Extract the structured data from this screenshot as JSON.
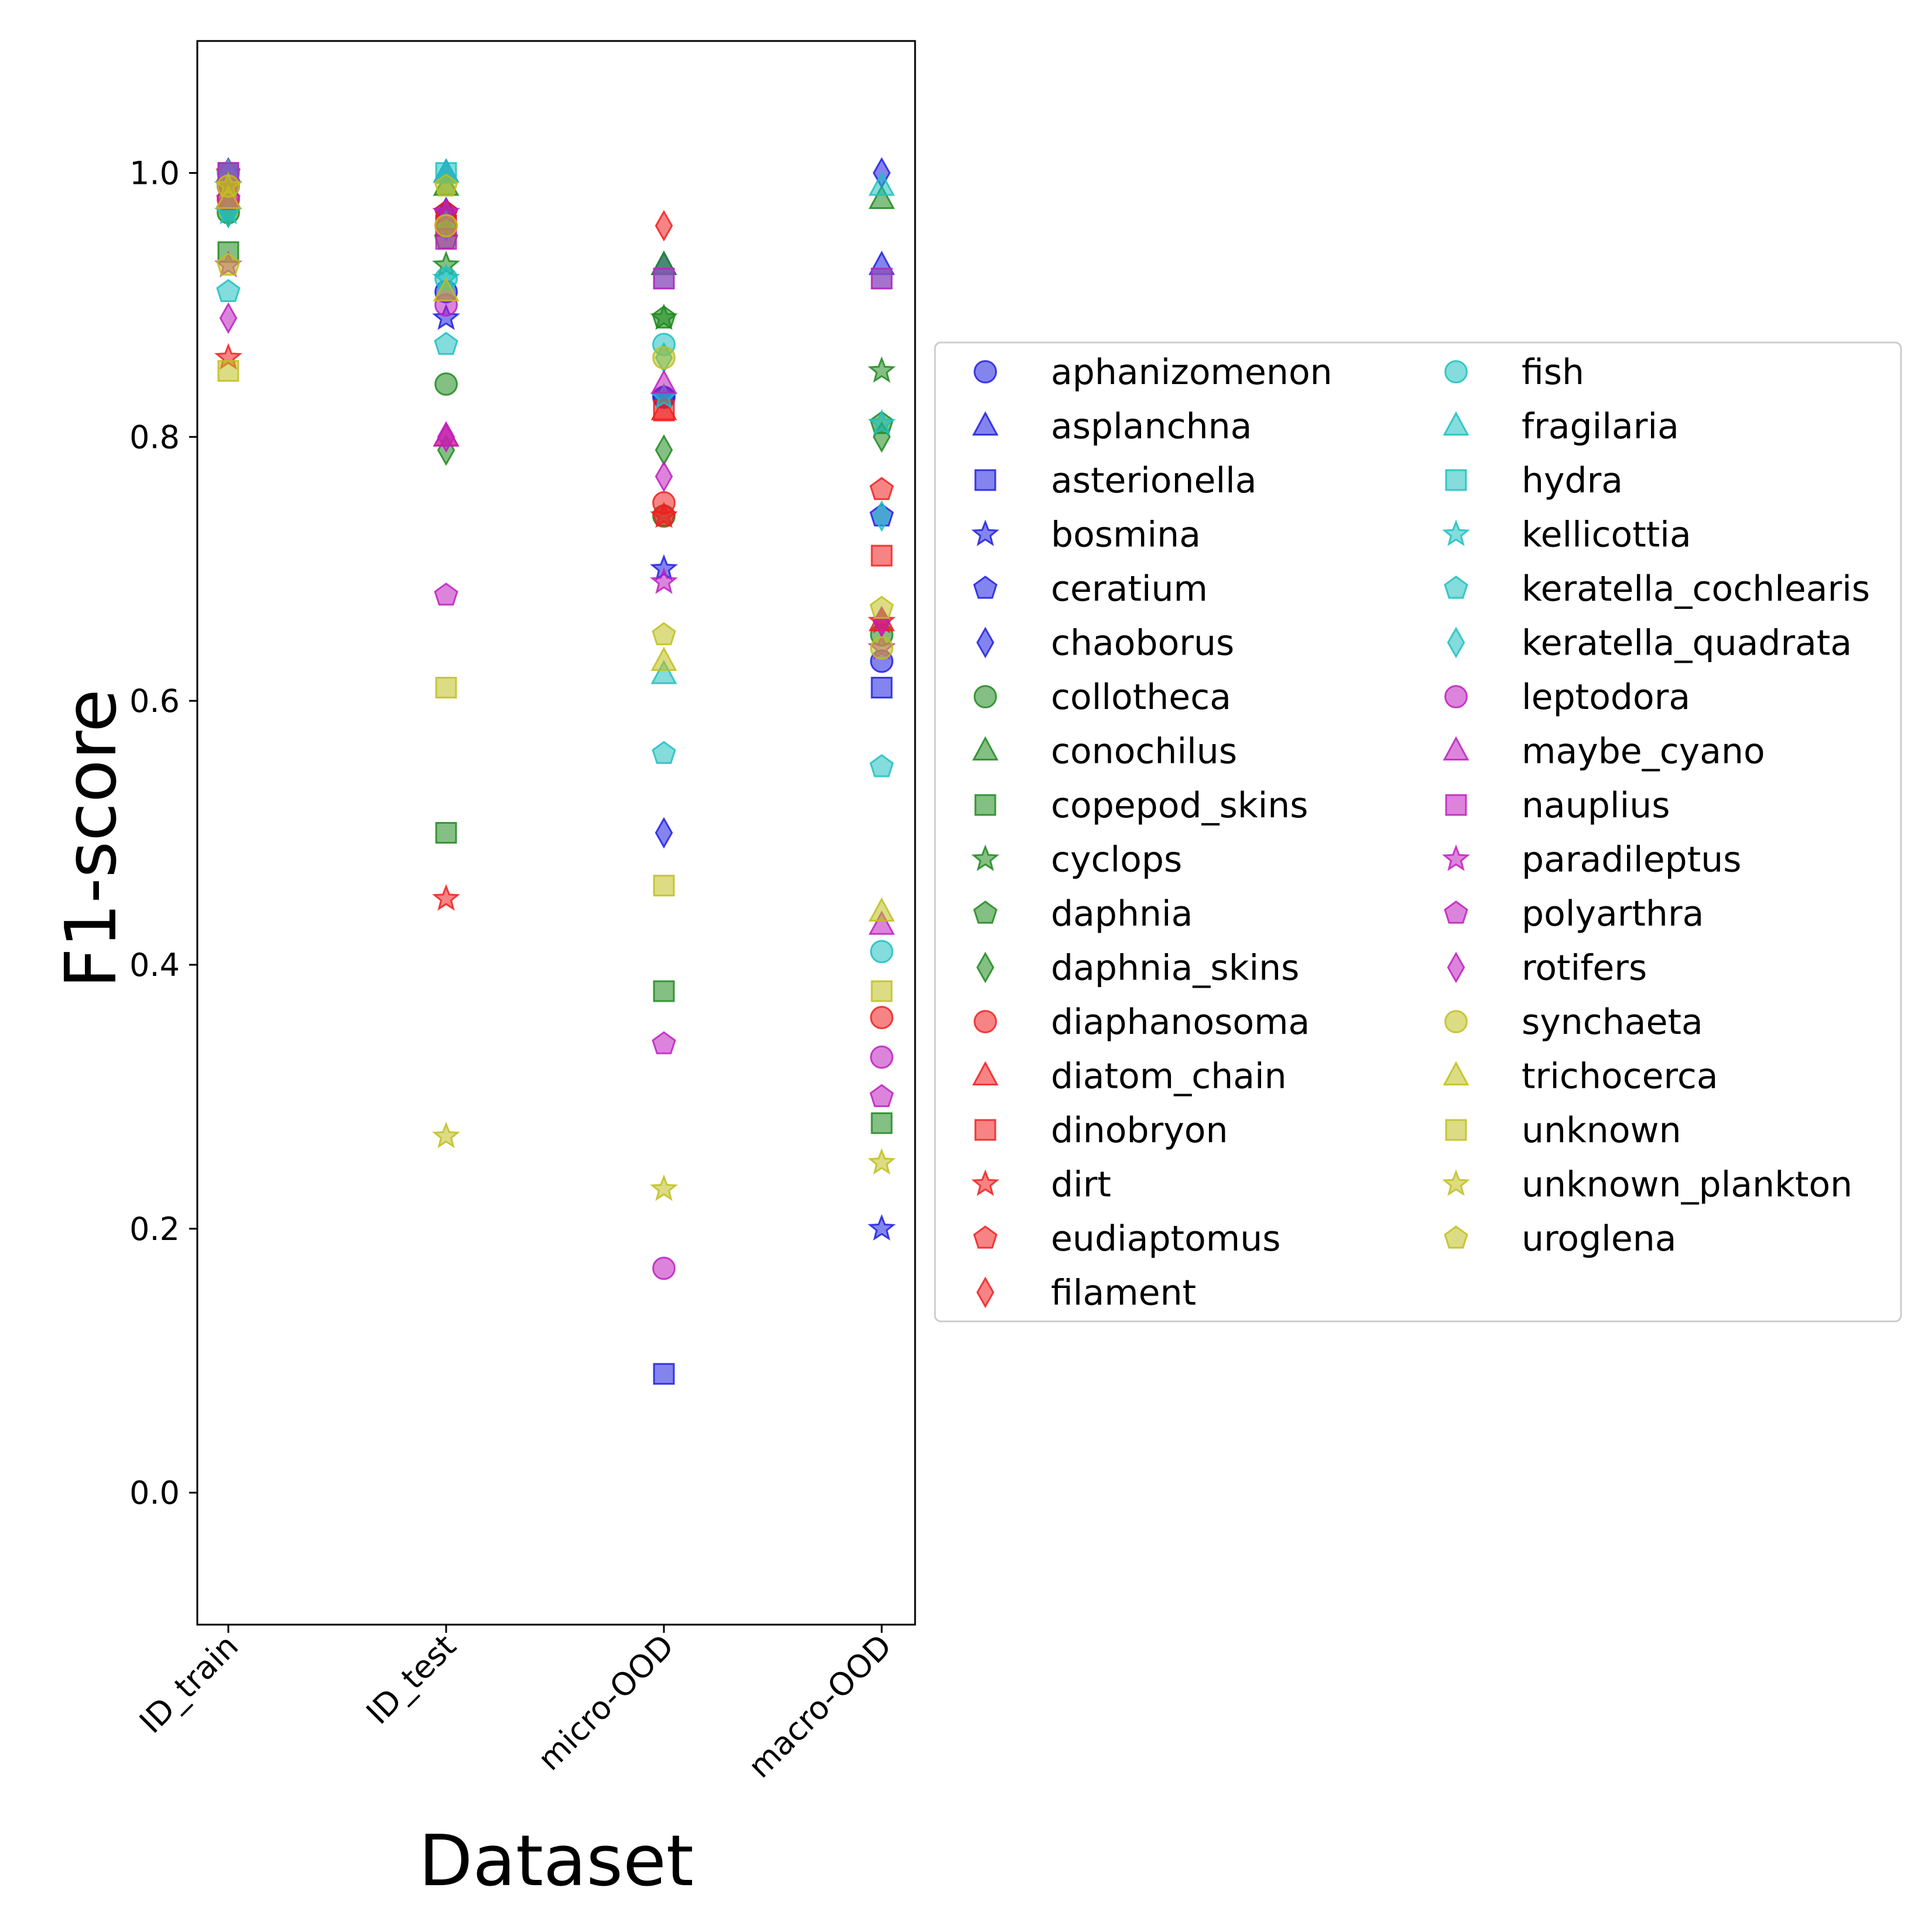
{
  "chart_data": {
    "type": "scatter",
    "title": "",
    "xlabel": "Dataset",
    "ylabel": "F1-score",
    "categories": [
      "ID_train",
      "ID_test",
      "micro-OOD",
      "macro-OOD"
    ],
    "ylim": [
      -0.1,
      1.1
    ],
    "yticks": [
      "0.0",
      "0.2",
      "0.4",
      "0.6",
      "0.8",
      "1.0"
    ],
    "yticks_values": [
      0.0,
      0.2,
      0.4,
      0.6,
      0.8,
      1.0
    ],
    "grid": false,
    "legend_position": "right",
    "series": [
      {
        "name": "aphanizomenon",
        "color": "#1f1fe0",
        "marker": "circle",
        "values": [
          0.99,
          0.91,
          0.83,
          0.63
        ]
      },
      {
        "name": "asplanchna",
        "color": "#1f1fe0",
        "marker": "triangle",
        "values": [
          1.0,
          1.0,
          0.93,
          0.93
        ]
      },
      {
        "name": "asterionella",
        "color": "#1f1fe0",
        "marker": "square",
        "values": [
          1.0,
          0.96,
          0.09,
          0.61
        ]
      },
      {
        "name": "bosmina",
        "color": "#1f1fe0",
        "marker": "star",
        "values": [
          0.99,
          0.89,
          0.7,
          0.2
        ]
      },
      {
        "name": "ceratium",
        "color": "#1f1fe0",
        "marker": "pentagon",
        "values": [
          1.0,
          0.97,
          0.83,
          0.74
        ]
      },
      {
        "name": "chaoborus",
        "color": "#1f1fe0",
        "marker": "diamond",
        "values": [
          1.0,
          0.97,
          0.5,
          1.0
        ]
      },
      {
        "name": "collotheca",
        "color": "#1f8a1f",
        "marker": "circle",
        "values": [
          0.97,
          0.84,
          0.74,
          0.65
        ]
      },
      {
        "name": "conochilus",
        "color": "#1f8a1f",
        "marker": "triangle",
        "values": [
          0.98,
          0.99,
          0.93,
          0.98
        ]
      },
      {
        "name": "copepod_skins",
        "color": "#1f8a1f",
        "marker": "square",
        "values": [
          0.94,
          0.5,
          0.38,
          0.28
        ]
      },
      {
        "name": "cyclops",
        "color": "#1f8a1f",
        "marker": "star",
        "values": [
          0.99,
          0.93,
          0.89,
          0.85
        ]
      },
      {
        "name": "daphnia",
        "color": "#1f8a1f",
        "marker": "pentagon",
        "values": [
          1.0,
          0.95,
          0.89,
          0.81
        ]
      },
      {
        "name": "daphnia_skins",
        "color": "#1f8a1f",
        "marker": "diamond",
        "values": [
          0.97,
          0.79,
          0.79,
          0.8
        ]
      },
      {
        "name": "diaphanosoma",
        "color": "#f01f1f",
        "marker": "circle",
        "values": [
          0.98,
          0.96,
          0.75,
          0.36
        ]
      },
      {
        "name": "diatom_chain",
        "color": "#f01f1f",
        "marker": "triangle",
        "values": [
          1.0,
          0.8,
          0.82,
          0.66
        ]
      },
      {
        "name": "dinobryon",
        "color": "#f01f1f",
        "marker": "square",
        "values": [
          1.0,
          0.96,
          0.82,
          0.71
        ]
      },
      {
        "name": "dirt",
        "color": "#f01f1f",
        "marker": "star",
        "values": [
          0.86,
          0.45,
          0.74,
          0.66
        ]
      },
      {
        "name": "eudiaptomus",
        "color": "#f01f1f",
        "marker": "pentagon",
        "values": [
          1.0,
          0.97,
          0.74,
          0.76
        ]
      },
      {
        "name": "filament",
        "color": "#f01f1f",
        "marker": "diamond",
        "values": [
          0.99,
          0.96,
          0.96,
          0.66
        ]
      },
      {
        "name": "fish",
        "color": "#1fbfbf",
        "marker": "circle",
        "values": [
          1.0,
          0.92,
          0.87,
          0.41
        ]
      },
      {
        "name": "fragilaria",
        "color": "#1fbfbf",
        "marker": "triangle",
        "values": [
          1.0,
          1.0,
          0.62,
          0.99
        ]
      },
      {
        "name": "hydra",
        "color": "#1fbfbf",
        "marker": "square",
        "values": [
          1.0,
          1.0,
          0.92,
          0.92
        ]
      },
      {
        "name": "kellicottia",
        "color": "#1fbfbf",
        "marker": "star",
        "values": [
          0.97,
          0.92,
          0.83,
          0.81
        ]
      },
      {
        "name": "keratella_cochlearis",
        "color": "#1fbfbf",
        "marker": "pentagon",
        "values": [
          0.91,
          0.87,
          0.56,
          0.55
        ]
      },
      {
        "name": "keratella_quadrata",
        "color": "#1fbfbf",
        "marker": "diamond",
        "values": [
          0.97,
          0.96,
          0.86,
          0.74
        ]
      },
      {
        "name": "leptodora",
        "color": "#bf1fbf",
        "marker": "circle",
        "values": [
          0.99,
          0.9,
          0.17,
          0.33
        ]
      },
      {
        "name": "maybe_cyano",
        "color": "#bf1fbf",
        "marker": "triangle",
        "values": [
          0.98,
          0.8,
          0.84,
          0.43
        ]
      },
      {
        "name": "nauplius",
        "color": "#bf1fbf",
        "marker": "square",
        "values": [
          1.0,
          0.95,
          0.92,
          0.92
        ]
      },
      {
        "name": "paradileptus",
        "color": "#bf1fbf",
        "marker": "star",
        "values": [
          0.93,
          0.97,
          0.69,
          0.64
        ]
      },
      {
        "name": "polyarthra",
        "color": "#bf1fbf",
        "marker": "pentagon",
        "values": [
          0.98,
          0.68,
          0.34,
          0.3
        ]
      },
      {
        "name": "rotifers",
        "color": "#bf1fbf",
        "marker": "diamond",
        "values": [
          0.89,
          0.8,
          0.77,
          0.66
        ]
      },
      {
        "name": "synchaeta",
        "color": "#bfbf1f",
        "marker": "circle",
        "values": [
          0.99,
          0.96,
          0.86,
          0.64
        ]
      },
      {
        "name": "trichocerca",
        "color": "#bfbf1f",
        "marker": "triangle",
        "values": [
          0.98,
          0.91,
          0.63,
          0.44
        ]
      },
      {
        "name": "unknown",
        "color": "#bfbf1f",
        "marker": "square",
        "values": [
          0.85,
          0.61,
          0.46,
          0.38
        ]
      },
      {
        "name": "unknown_plankton",
        "color": "#bfbf1f",
        "marker": "star",
        "values": [
          0.99,
          0.27,
          0.23,
          0.25
        ]
      },
      {
        "name": "uroglena",
        "color": "#bfbf1f",
        "marker": "pentagon",
        "values": [
          0.93,
          0.99,
          0.65,
          0.67
        ]
      }
    ]
  }
}
